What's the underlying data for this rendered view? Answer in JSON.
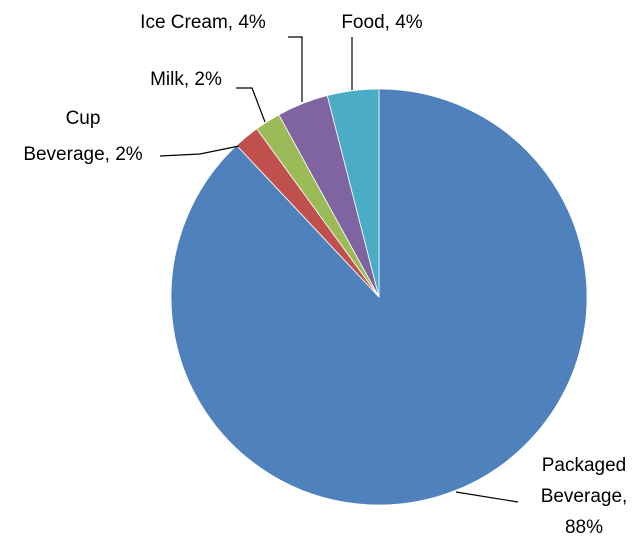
{
  "chart_data": {
    "type": "pie",
    "title": "",
    "categories": [
      "Packaged Beverage",
      "Cup Beverage",
      "Milk",
      "Ice Cream",
      "Food"
    ],
    "values": [
      88,
      2,
      2,
      4,
      4
    ],
    "percent_labels": [
      "88%",
      "2%",
      "2%",
      "4%",
      "4%"
    ],
    "start_angle": "12 o'clock",
    "direction": "clockwise",
    "legend": "none",
    "slices": [
      {
        "name": "Packaged Beverage",
        "value": 88,
        "color": "#4F81BD",
        "label_lines": [
          "Packaged",
          "Beverage,",
          "88%"
        ]
      },
      {
        "name": "Cup Beverage",
        "value": 2,
        "color": "#C0504D",
        "label_lines": [
          "Cup",
          "Beverage, 2%"
        ]
      },
      {
        "name": "Milk",
        "value": 2,
        "color": "#9BBB59",
        "label_lines": [
          "Milk, 2%"
        ]
      },
      {
        "name": "Ice Cream",
        "value": 4,
        "color": "#8064A2",
        "label_lines": [
          "Ice Cream, 4%"
        ]
      },
      {
        "name": "Food",
        "value": 4,
        "color": "#4BACC6",
        "label_lines": [
          "Food, 4%"
        ]
      }
    ]
  }
}
